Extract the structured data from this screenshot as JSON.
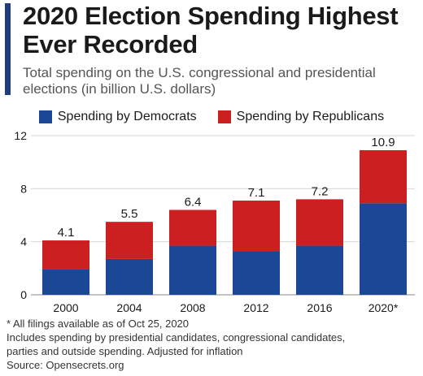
{
  "header": {
    "title_line1": "2020 Election Spending Highest",
    "title_line2": "Ever Recorded",
    "subtitle_line1": "Total spending on the U.S. congressional and presidential",
    "subtitle_line2": "elections (in billion U.S. dollars)"
  },
  "colors": {
    "accent": "#1f3d7a",
    "democrats": "#1b4896",
    "republicans": "#cc1f1f",
    "grid": "#d7d7d7"
  },
  "footer": {
    "note1": "* All filings available as of Oct 25, 2020",
    "note2": "Includes spending by presidential candidates, congressional candidates,",
    "note3": "parties and outside spending. Adjusted for inflation",
    "source": "Source: Opensecrets.org"
  },
  "chart_data": {
    "type": "bar",
    "stacked": true,
    "categories": [
      "2000",
      "2004",
      "2008",
      "2012",
      "2016",
      "2020*"
    ],
    "series": [
      {
        "name": "Spending by Democrats",
        "values": [
          1.9,
          2.7,
          3.7,
          3.3,
          3.7,
          6.9
        ]
      },
      {
        "name": "Spending by Republicans",
        "values": [
          2.2,
          2.8,
          2.7,
          3.8,
          3.5,
          4.0
        ]
      }
    ],
    "totals": [
      "4.1",
      "5.5",
      "6.4",
      "7.1",
      "7.2",
      "10.9"
    ],
    "yticks": [
      "0",
      "4",
      "8",
      "12"
    ],
    "ylim": [
      0,
      12
    ],
    "grid": true,
    "legend": "top"
  }
}
